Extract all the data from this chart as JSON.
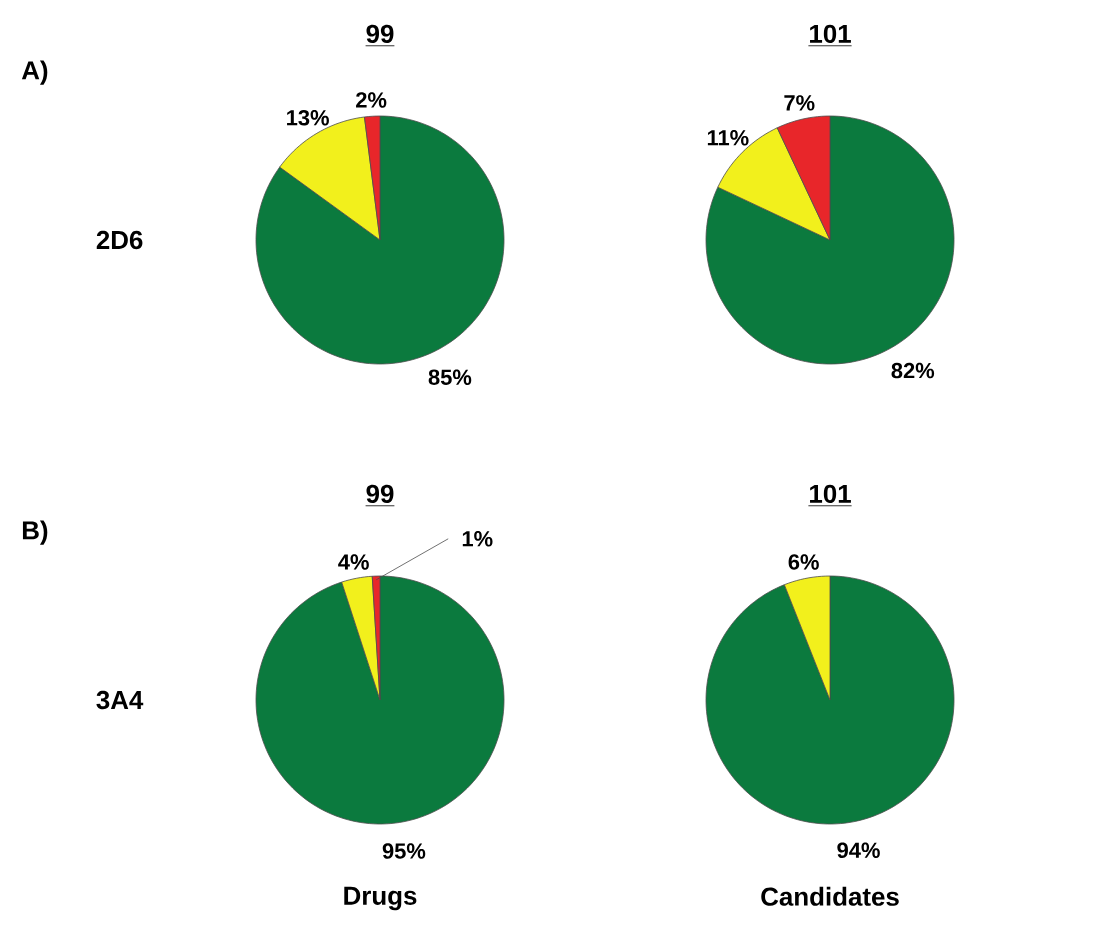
{
  "chart_data": [
    {
      "type": "pie",
      "title": "99",
      "ylabel": "2D6",
      "annotations": [
        "A)"
      ],
      "categories": [
        null,
        null,
        null
      ],
      "values": [
        85,
        13,
        2
      ],
      "value_labels": [
        "85%",
        "13%",
        "2%"
      ],
      "colors": [
        "#0b7a3e",
        "#f2f01c",
        "#e8262a"
      ]
    },
    {
      "type": "pie",
      "title": "101",
      "categories": [
        null,
        null,
        null
      ],
      "values": [
        82,
        11,
        7
      ],
      "value_labels": [
        "82%",
        "11%",
        "7%"
      ],
      "colors": [
        "#0b7a3e",
        "#f2f01c",
        "#e8262a"
      ]
    },
    {
      "type": "pie",
      "title": "99",
      "ylabel": "3A4",
      "xlabel": "Drugs",
      "annotations": [
        "B)"
      ],
      "categories": [
        null,
        null,
        null
      ],
      "values": [
        95,
        4,
        1
      ],
      "value_labels": [
        "95%",
        "4%",
        "1%"
      ],
      "colors": [
        "#0b7a3e",
        "#f2f01c",
        "#e8262a"
      ]
    },
    {
      "type": "pie",
      "title": "101",
      "xlabel": "Candidates",
      "categories": [
        null,
        null
      ],
      "values": [
        94,
        6
      ],
      "value_labels": [
        "94%",
        "6%"
      ],
      "colors": [
        "#0b7a3e",
        "#f2f01c"
      ]
    }
  ]
}
